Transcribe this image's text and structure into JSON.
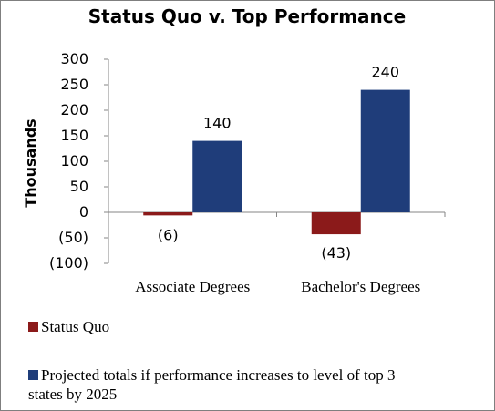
{
  "chart_data": {
    "type": "bar",
    "title": "Status Quo v. Top Performance",
    "ylabel": "Thousands",
    "xlabel": "",
    "categories": [
      "Associate Degrees",
      "Bachelor's Degrees"
    ],
    "series": [
      {
        "name": "Status Quo",
        "values": [
          -6,
          -43
        ],
        "labels": [
          "(6)",
          "(43)"
        ],
        "color": "#8b1a1a"
      },
      {
        "name": "Projected totals if performance increases to level of top 3 states by 2025",
        "values": [
          140,
          240
        ],
        "labels": [
          "140",
          "240"
        ],
        "color": "#1f3d7a"
      }
    ],
    "yticks": [
      300,
      250,
      200,
      150,
      100,
      50,
      0,
      -50,
      -100
    ],
    "ytick_labels": [
      "300",
      "250",
      "200",
      "150",
      "100",
      "50",
      "0",
      "(50)",
      "(100)"
    ],
    "ylim": [
      -100,
      300
    ],
    "grid": false,
    "legend_position": "bottom"
  }
}
